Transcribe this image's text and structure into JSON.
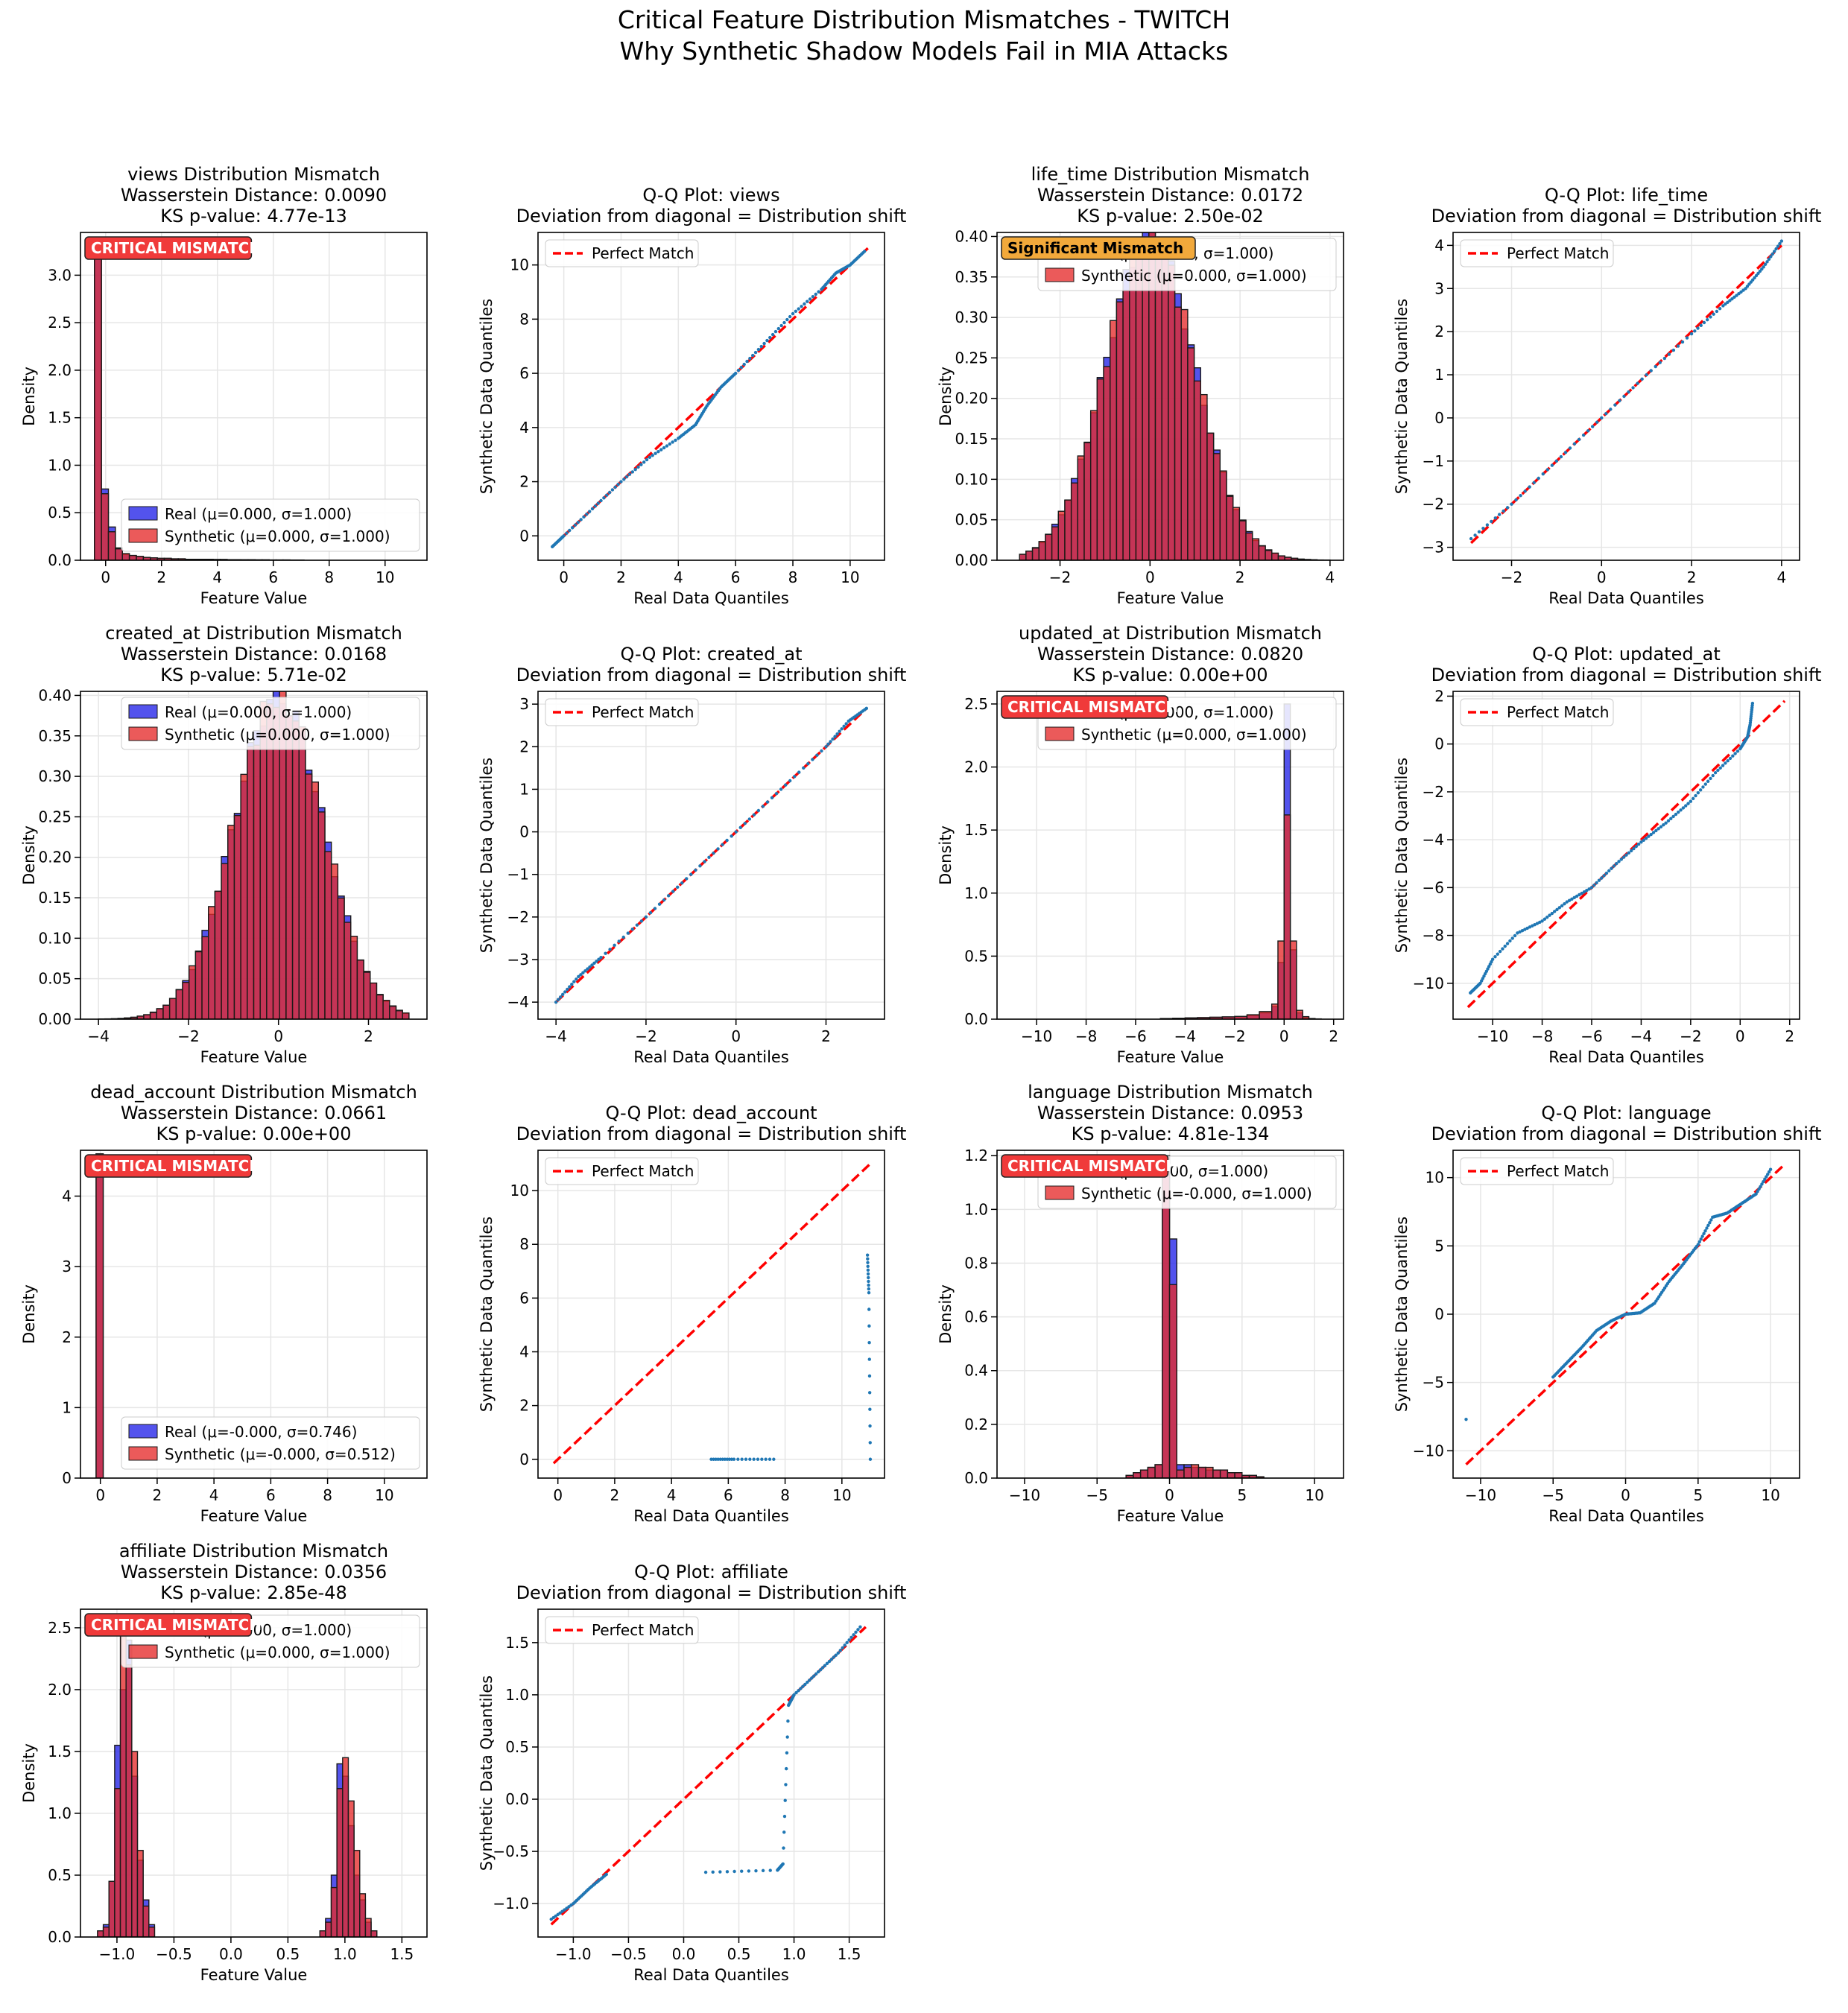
{
  "figure": {
    "title_line1": "Critical Feature Distribution Mismatches - TWITCH",
    "title_line2": "Why Synthetic Shadow Models Fail in MIA Attacks"
  },
  "colors": {
    "real": "#2323e8",
    "synthetic": "#e62b2b",
    "overlap": "#b20d3c",
    "perfect_line": "#ff0000",
    "qq_points": "#1f77b4",
    "badge_critical": "#f03a3a",
    "badge_significant": "#f2a93b"
  },
  "labels": {
    "density": "Density",
    "feature_value": "Feature Value",
    "real_quantiles": "Real Data Quantiles",
    "synthetic_quantiles": "Synthetic Data Quantiles",
    "perfect_match": "Perfect Match",
    "qq_subtitle": "Deviation from diagonal = Distribution shift"
  },
  "chart_data": [
    {
      "type": "histogram",
      "feature": "views",
      "title": "views Distribution Mismatch",
      "wasserstein": "Wasserstein Distance: 0.0090",
      "ks": "KS p-value: 4.77e-13",
      "badge": "CRITICAL MISMATCH",
      "badge_level": "critical",
      "legend_real": "Real (μ=0.000, σ=1.000)",
      "legend_synthetic": "Synthetic (μ=0.000, σ=1.000)",
      "xlim": [
        -0.9,
        11.5
      ],
      "ylim": [
        0,
        3.45
      ],
      "xticks": [
        0,
        2,
        4,
        6,
        8,
        10
      ],
      "yticks": [
        0.0,
        0.5,
        1.0,
        1.5,
        2.0,
        2.5,
        3.0
      ],
      "bins": [
        -0.4,
        -0.15,
        0.1,
        0.35,
        0.6,
        0.85,
        1.1,
        1.35,
        1.6,
        1.85,
        2.1,
        2.35,
        2.6,
        2.85,
        3.1,
        3.35,
        3.6,
        3.85,
        4.1,
        4.35,
        4.6,
        4.85,
        5.1,
        5.35,
        5.6,
        5.85,
        6.1,
        6.35,
        6.6,
        6.85,
        7.1
      ],
      "real": [
        3.3,
        0.75,
        0.35,
        0.13,
        0.06,
        0.05,
        0.04,
        0.03,
        0.025,
        0.02,
        0.02,
        0.015,
        0.015,
        0.01,
        0.01,
        0.01,
        0.01,
        0.008,
        0.008,
        0.006,
        0.006,
        0.005,
        0.005,
        0.004,
        0.004,
        0.003,
        0.003,
        0.003,
        0.002,
        0.002
      ],
      "synthetic": [
        3.35,
        0.7,
        0.3,
        0.12,
        0.07,
        0.05,
        0.04,
        0.03,
        0.025,
        0.02,
        0.02,
        0.015,
        0.015,
        0.01,
        0.01,
        0.01,
        0.01,
        0.008,
        0.008,
        0.006,
        0.006,
        0.005,
        0.005,
        0.004,
        0.004,
        0.003,
        0.003,
        0.003,
        0.002,
        0.002
      ]
    },
    {
      "type": "scatter",
      "feature": "views",
      "title": "Q-Q Plot: views",
      "xlim": [
        -0.9,
        11.2
      ],
      "ylim": [
        -0.9,
        11.2
      ],
      "xticks": [
        0,
        2,
        4,
        6,
        8,
        10
      ],
      "yticks": [
        0,
        2,
        4,
        6,
        8,
        10
      ],
      "line": [
        -0.4,
        10.7
      ],
      "x": [
        -0.4,
        0,
        1,
        2,
        3,
        4,
        4.6,
        5,
        5.5,
        6,
        7,
        8,
        9,
        9.5,
        10,
        10.5
      ],
      "y": [
        -0.4,
        0,
        1,
        2,
        2.9,
        3.6,
        4.1,
        4.8,
        5.5,
        6,
        7.1,
        8.2,
        9.1,
        9.7,
        10.0,
        10.5
      ]
    },
    {
      "type": "histogram",
      "feature": "life_time",
      "title": "life_time Distribution Mismatch",
      "wasserstein": "Wasserstein Distance: 0.0172",
      "ks": "KS p-value: 2.50e-02",
      "badge": "Significant Mismatch",
      "badge_level": "significant",
      "legend_real": "Real (μ=-0.000, σ=1.000)",
      "legend_synthetic": "Synthetic (μ=0.000, σ=1.000)",
      "xlim": [
        -3.4,
        4.3
      ],
      "ylim": [
        0,
        0.405
      ],
      "xticks": [
        -2,
        0,
        2,
        4
      ],
      "yticks": [
        0.0,
        0.05,
        0.1,
        0.15,
        0.2,
        0.25,
        0.3,
        0.35,
        0.4
      ],
      "gauss": {
        "mu": 0,
        "sigma": 1,
        "from": -2.9,
        "to": 4.0,
        "n": 48
      }
    },
    {
      "type": "scatter",
      "feature": "life_time",
      "title": "Q-Q Plot: life_time",
      "xlim": [
        -3.3,
        4.4
      ],
      "ylim": [
        -3.3,
        4.3
      ],
      "xticks": [
        -2,
        0,
        2,
        4
      ],
      "yticks": [
        -3,
        -2,
        -1,
        0,
        1,
        2,
        3,
        4
      ],
      "line": [
        -2.9,
        4.0
      ],
      "x": [
        -2.9,
        -2,
        -1,
        0,
        1,
        2,
        2.7,
        3.2,
        3.6,
        4.0
      ],
      "y": [
        -2.8,
        -2,
        -1,
        0,
        1,
        1.95,
        2.6,
        3.0,
        3.5,
        4.1
      ]
    },
    {
      "type": "histogram",
      "feature": "created_at",
      "title": "created_at Distribution Mismatch",
      "wasserstein": "Wasserstein Distance: 0.0168",
      "ks": "KS p-value: 5.71e-02",
      "badge": "",
      "badge_level": "none",
      "legend_real": "Real (μ=0.000, σ=1.000)",
      "legend_synthetic": "Synthetic (μ=0.000, σ=1.000)",
      "xlim": [
        -4.4,
        3.3
      ],
      "ylim": [
        0,
        0.405
      ],
      "xticks": [
        -4,
        -2,
        0,
        2
      ],
      "yticks": [
        0.0,
        0.05,
        0.1,
        0.15,
        0.2,
        0.25,
        0.3,
        0.35,
        0.4
      ],
      "gauss": {
        "mu": 0,
        "sigma": 1,
        "from": -4.0,
        "to": 2.9,
        "n": 48
      }
    },
    {
      "type": "scatter",
      "feature": "created_at",
      "title": "Q-Q Plot: created_at",
      "xlim": [
        -4.4,
        3.3
      ],
      "ylim": [
        -4.4,
        3.3
      ],
      "xticks": [
        -4,
        -2,
        0,
        2
      ],
      "yticks": [
        -4,
        -3,
        -2,
        -1,
        0,
        1,
        2,
        3
      ],
      "line": [
        -4.0,
        2.9
      ],
      "x": [
        -4.0,
        -3.5,
        -3,
        -2,
        -1,
        0,
        1,
        2,
        2.5,
        2.9
      ],
      "y": [
        -4.0,
        -3.4,
        -2.95,
        -2,
        -1,
        0,
        1,
        2,
        2.6,
        2.9
      ]
    },
    {
      "type": "histogram",
      "feature": "updated_at",
      "title": "updated_at Distribution Mismatch",
      "wasserstein": "Wasserstein Distance: 0.0820",
      "ks": "KS p-value: 0.00e+00",
      "badge": "CRITICAL MISMATCH",
      "badge_level": "critical",
      "legend_real": "Real (μ=-0.000, σ=1.000)",
      "legend_synthetic": "Synthetic (μ=0.000, σ=1.000)",
      "xlim": [
        -11.6,
        2.4
      ],
      "ylim": [
        0,
        2.6
      ],
      "xticks": [
        -10,
        -8,
        -6,
        -4,
        -2,
        0,
        2
      ],
      "yticks": [
        0.0,
        0.5,
        1.0,
        1.5,
        2.0,
        2.5
      ],
      "bins": [
        -5,
        -4.5,
        -4,
        -3.5,
        -3,
        -2.5,
        -2,
        -1.5,
        -1,
        -0.5,
        -0.25,
        0,
        0.25,
        0.5,
        0.75,
        1.0,
        1.25,
        1.5
      ],
      "real": [
        0.005,
        0.007,
        0.01,
        0.012,
        0.015,
        0.018,
        0.02,
        0.03,
        0.05,
        0.1,
        0.45,
        2.5,
        0.55,
        0.05,
        0.01,
        0.005,
        0.002
      ],
      "synthetic": [
        0.005,
        0.007,
        0.01,
        0.012,
        0.015,
        0.018,
        0.022,
        0.035,
        0.06,
        0.12,
        0.62,
        1.62,
        0.62,
        0.07,
        0.02,
        0.005,
        0.002
      ]
    },
    {
      "type": "scatter",
      "feature": "updated_at",
      "title": "Q-Q Plot: updated_at",
      "xlim": [
        -11.6,
        2.4
      ],
      "ylim": [
        -11.5,
        2.2
      ],
      "xticks": [
        -10,
        -8,
        -6,
        -4,
        -2,
        0,
        2
      ],
      "yticks": [
        -10,
        -8,
        -6,
        -4,
        -2,
        0,
        2
      ],
      "line": [
        -11,
        1.8
      ],
      "x": [
        -10.9,
        -10.5,
        -10,
        -9,
        -8,
        -7,
        -6,
        -5,
        -4,
        -3,
        -2,
        -1,
        0,
        0.3,
        0.4,
        0.5
      ],
      "y": [
        -10.4,
        -10.0,
        -9.0,
        -7.9,
        -7.4,
        -6.6,
        -6.0,
        -5.0,
        -4.1,
        -3.3,
        -2.4,
        -1.2,
        -0.2,
        0.3,
        0.8,
        1.7
      ]
    },
    {
      "type": "histogram",
      "feature": "dead_account",
      "title": "dead_account Distribution Mismatch",
      "wasserstein": "Wasserstein Distance: 0.0661",
      "ks": "KS p-value: 0.00e+00",
      "badge": "CRITICAL MISMATCH",
      "badge_level": "critical",
      "legend_real": "Real (μ=-0.000, σ=0.746)",
      "legend_synthetic": "Synthetic (μ=-0.000, σ=0.512)",
      "xlim": [
        -0.7,
        11.5
      ],
      "ylim": [
        0,
        4.65
      ],
      "xticks": [
        0,
        2,
        4,
        6,
        8,
        10
      ],
      "yticks": [
        0,
        1,
        2,
        3,
        4
      ],
      "bins": [
        -0.15,
        0.1
      ],
      "real": [
        4.6
      ],
      "synthetic": [
        4.6
      ]
    },
    {
      "type": "scatter",
      "feature": "dead_account",
      "title": "Q-Q Plot: dead_account",
      "xlim": [
        -0.7,
        11.5
      ],
      "ylim": [
        -0.7,
        11.5
      ],
      "xticks": [
        0,
        2,
        4,
        6,
        8,
        10
      ],
      "yticks": [
        0,
        2,
        4,
        6,
        8,
        10
      ],
      "line": [
        -0.15,
        11
      ],
      "x": [
        5.4,
        6.2,
        7.6,
        10.9,
        10.95,
        11.0
      ],
      "y": [
        0,
        0,
        0,
        7.6,
        6.2,
        0
      ]
    },
    {
      "type": "histogram",
      "feature": "language",
      "title": "language Distribution Mismatch",
      "wasserstein": "Wasserstein Distance: 0.0953",
      "ks": "KS p-value: 4.81e-134",
      "badge": "CRITICAL MISMATCH",
      "badge_level": "critical",
      "legend_real": "Real (μ=0.000, σ=1.000)",
      "legend_synthetic": "Synthetic (μ=-0.000, σ=1.000)",
      "xlim": [
        -11.9,
        12.0
      ],
      "ylim": [
        0,
        1.22
      ],
      "xticks": [
        -10,
        -5,
        0,
        5,
        10
      ],
      "yticks": [
        0.0,
        0.2,
        0.4,
        0.6,
        0.8,
        1.0,
        1.2
      ],
      "bins": [
        -3,
        -2.5,
        -2,
        -1.5,
        -1,
        -0.5,
        0,
        0.5,
        1,
        1.5,
        2,
        2.5,
        3,
        3.5,
        4,
        4.5,
        5,
        5.5,
        6,
        6.5
      ],
      "real": [
        0.01,
        0.02,
        0.03,
        0.04,
        0.05,
        1.2,
        0.89,
        0.05,
        0.05,
        0.04,
        0.04,
        0.03,
        0.03,
        0.03,
        0.02,
        0.02,
        0.01,
        0.01,
        0.005
      ],
      "synthetic": [
        0.01,
        0.02,
        0.03,
        0.04,
        0.05,
        1.2,
        0.72,
        0.03,
        0.04,
        0.05,
        0.04,
        0.04,
        0.03,
        0.03,
        0.02,
        0.02,
        0.01,
        0.01,
        0.005
      ]
    },
    {
      "type": "scatter",
      "feature": "language",
      "title": "Q-Q Plot: language",
      "xlim": [
        -11.9,
        12.0
      ],
      "ylim": [
        -12.0,
        12.0
      ],
      "xticks": [
        -10,
        -5,
        0,
        5,
        10
      ],
      "yticks": [
        -10,
        -5,
        0,
        5,
        10
      ],
      "line": [
        -11,
        11
      ],
      "x": [
        -11,
        -5,
        -4,
        -3,
        -2,
        -1,
        0,
        1,
        2,
        3,
        4,
        5,
        6,
        7,
        8,
        9,
        10
      ],
      "y": [
        -7.7,
        -4.6,
        -3.5,
        -2.4,
        -1.2,
        -0.5,
        0,
        0.1,
        0.8,
        2.4,
        3.7,
        5.1,
        7.1,
        7.4,
        8.1,
        8.8,
        10.6
      ]
    },
    {
      "type": "histogram",
      "feature": "affiliate",
      "title": "affiliate Distribution Mismatch",
      "wasserstein": "Wasserstein Distance: 0.0356",
      "ks": "KS p-value: 2.85e-48",
      "badge": "CRITICAL MISMATCH",
      "badge_level": "critical",
      "legend_real": "Real (μ=0.000, σ=1.000)",
      "legend_synthetic": "Synthetic (μ=0.000, σ=1.000)",
      "xlim": [
        -1.32,
        1.72
      ],
      "ylim": [
        0,
        2.65
      ],
      "xticks": [
        -1.0,
        -0.5,
        0.0,
        0.5,
        1.0,
        1.5
      ],
      "yticks": [
        0.0,
        0.5,
        1.0,
        1.5,
        2.0,
        2.5
      ],
      "bins": [
        -1.17,
        -1.12,
        -1.07,
        -1.02,
        -0.97,
        -0.92,
        -0.87,
        -0.82,
        -0.77,
        -0.72,
        -0.67,
        0.78,
        0.83,
        0.88,
        0.93,
        0.98,
        1.03,
        1.08,
        1.13,
        1.18,
        1.23,
        1.28,
        1.33,
        1.38,
        1.43,
        1.48,
        1.53,
        1.58
      ],
      "real": [
        0.05,
        0.1,
        0.45,
        1.55,
        2.0,
        2.4,
        1.3,
        0.62,
        0.3,
        0.1,
        0,
        0.05,
        0.15,
        0.5,
        1.4,
        1.3,
        0.9,
        0.5,
        0.3,
        0.12,
        0.05,
        0.0,
        0.0,
        0.0,
        0.0,
        0.0,
        0.0
      ],
      "synthetic": [
        0.05,
        0.08,
        0.45,
        1.2,
        2.5,
        2.2,
        1.5,
        0.7,
        0.25,
        0.08,
        0,
        0.05,
        0.12,
        0.4,
        1.2,
        1.45,
        1.1,
        0.7,
        0.35,
        0.15,
        0.05,
        0.0,
        0.0,
        0.0,
        0.0,
        0.0,
        0.0
      ]
    },
    {
      "type": "scatter",
      "feature": "affiliate",
      "title": "Q-Q Plot: affiliate",
      "xlim": [
        -1.32,
        1.82
      ],
      "ylim": [
        -1.32,
        1.82
      ],
      "xticks": [
        -1.0,
        -0.5,
        0.0,
        0.5,
        1.0,
        1.5
      ],
      "yticks": [
        -1.0,
        -0.5,
        0.0,
        0.5,
        1.0,
        1.5
      ],
      "line": [
        -1.2,
        1.65
      ],
      "x": [
        -1.2,
        -1.0,
        -0.85,
        -0.7,
        0.2,
        0.85,
        0.9,
        0.95,
        1.0,
        1.2,
        1.4,
        1.6
      ],
      "y": [
        -1.15,
        -1.0,
        -0.85,
        -0.72,
        -0.7,
        -0.68,
        -0.62,
        0.9,
        1.0,
        1.2,
        1.4,
        1.65
      ]
    }
  ]
}
